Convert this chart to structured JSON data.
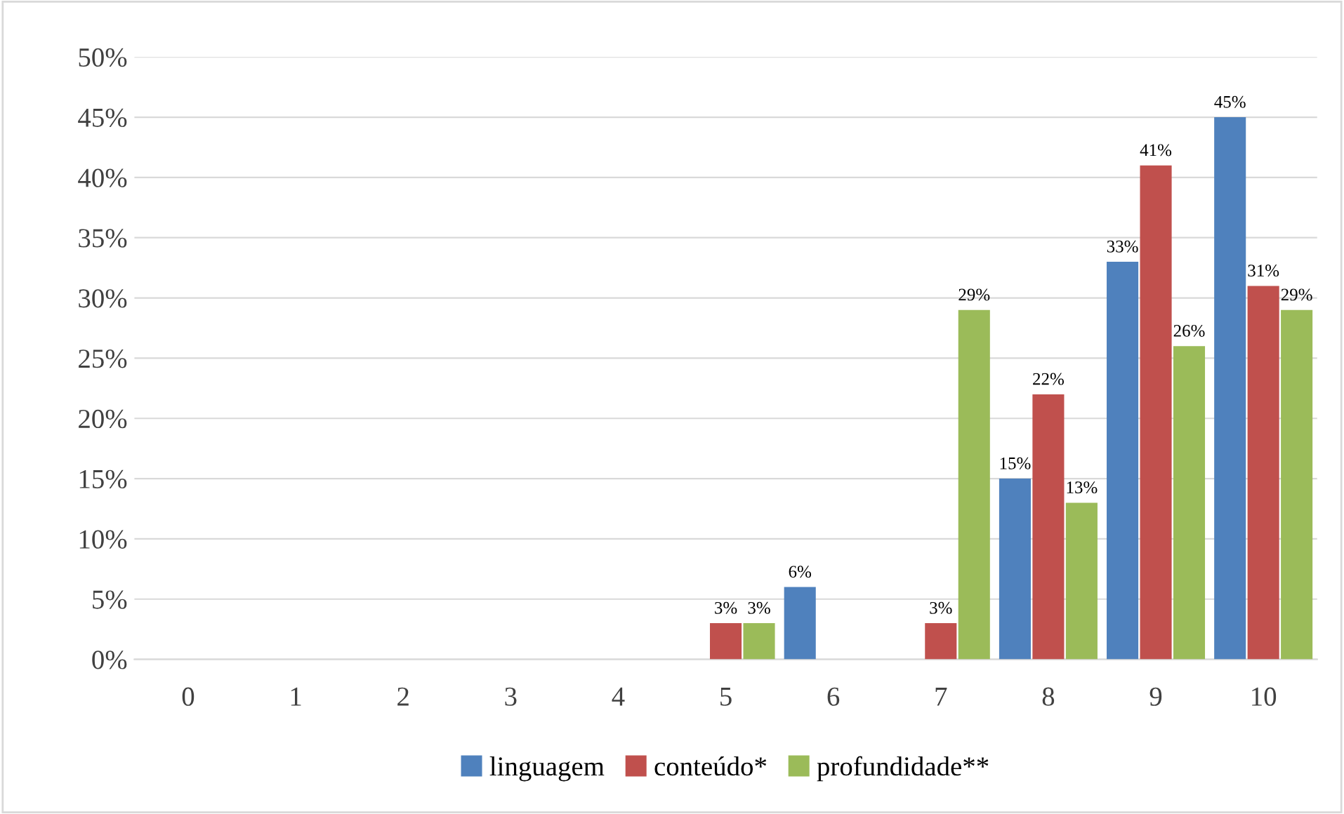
{
  "chart_data": {
    "type": "bar",
    "categories": [
      "0",
      "1",
      "2",
      "3",
      "4",
      "5",
      "6",
      "7",
      "8",
      "9",
      "10"
    ],
    "series": [
      {
        "name": "linguagem",
        "color": "#4f81bd",
        "values": [
          0,
          0,
          0,
          0,
          0,
          0,
          6,
          0,
          15,
          33,
          45
        ],
        "value_labels": [
          null,
          null,
          null,
          null,
          null,
          null,
          "6%",
          null,
          "15%",
          "33%",
          "45%"
        ]
      },
      {
        "name": "conteúdo*",
        "color": "#c0504d",
        "values": [
          0,
          0,
          0,
          0,
          0,
          3,
          0,
          3,
          22,
          41,
          31
        ],
        "value_labels": [
          null,
          null,
          null,
          null,
          null,
          "3%",
          null,
          "3%",
          "22%",
          "41%",
          "31%"
        ]
      },
      {
        "name": "profundidade**",
        "color": "#9bbb59",
        "values": [
          0,
          0,
          0,
          0,
          0,
          3,
          0,
          29,
          13,
          26,
          29
        ],
        "value_labels": [
          null,
          null,
          null,
          null,
          null,
          "3%",
          null,
          "29%",
          "13%",
          "26%",
          "29%"
        ]
      }
    ],
    "ylim": [
      0,
      50
    ],
    "yticks": [
      {
        "value": 0,
        "label": "0%"
      },
      {
        "value": 5,
        "label": "5%"
      },
      {
        "value": 10,
        "label": "10%"
      },
      {
        "value": 15,
        "label": "15%"
      },
      {
        "value": 20,
        "label": "20%"
      },
      {
        "value": 25,
        "label": "25%"
      },
      {
        "value": 30,
        "label": "30%"
      },
      {
        "value": 35,
        "label": "35%"
      },
      {
        "value": 40,
        "label": "40%"
      },
      {
        "value": 45,
        "label": "45%"
      },
      {
        "value": 50,
        "label": "50%"
      }
    ],
    "grid": "y",
    "legend": "bottom"
  }
}
